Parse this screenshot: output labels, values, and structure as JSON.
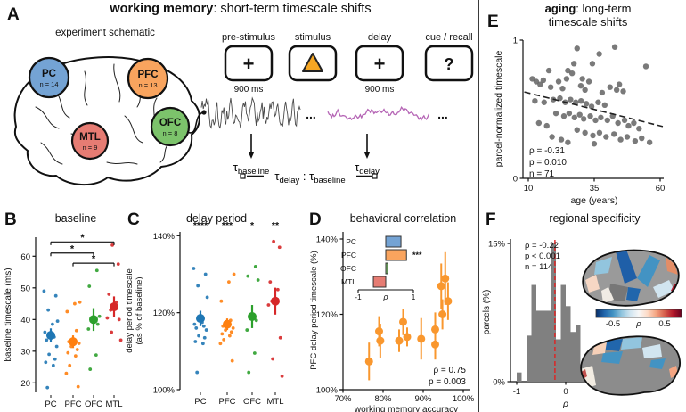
{
  "colors": {
    "pc": "#1f77b4",
    "pfc": "#ff7f0e",
    "ofc": "#2ca02c",
    "mtl": "#d62728",
    "pc_light": "#74a3d4",
    "pfc_light": "#f9a45e",
    "ofc_light": "#7cc36b",
    "mtl_light": "#e67c73",
    "gray_trace": "#4a4a4a",
    "purple_trace": "#b565b5",
    "stim_triangle": "#f5a623",
    "hist_bar": "#808080",
    "mean_line_red": "#e02020",
    "scatter_gray": "#636363",
    "d_point_orange": "#f9972e"
  },
  "panelA": {
    "label": "A",
    "title": {
      "bold": "working memory",
      "rest": ": short-term timescale shifts"
    },
    "schematic_caption": "experiment schematic",
    "regions": [
      {
        "name": "PC",
        "n_label": "n = 14",
        "color_key": "pc_light"
      },
      {
        "name": "PFC",
        "n_label": "n = 13",
        "color_key": "pfc_light"
      },
      {
        "name": "MTL",
        "n_label": "n = 9",
        "color_key": "mtl_light"
      },
      {
        "name": "OFC",
        "n_label": "n = 8",
        "color_key": "ofc_light"
      }
    ],
    "screens": [
      {
        "label": "pre-stimulus",
        "symbol": "+",
        "duration": "900 ms"
      },
      {
        "label": "stimulus",
        "symbol": "triangle",
        "duration": null
      },
      {
        "label": "delay",
        "symbol": "+",
        "duration": "900 ms"
      },
      {
        "label": "cue / recall",
        "symbol": "?",
        "duration": null
      }
    ],
    "ellipsis": "...",
    "tau_baseline": {
      "tau": "τ",
      "sub": "baseline"
    },
    "tau_delay": {
      "tau": "τ",
      "sub": "delay"
    },
    "ratio": {
      "tau1": "τ",
      "sub1": "delay",
      "sep": " : ",
      "tau2": "τ",
      "sub2": "baseline"
    }
  },
  "chart_data": [
    {
      "id": "B",
      "type": "scatter",
      "panel_label": "B",
      "title": "baseline",
      "ylabel": "baseline timescale (ms)",
      "ylim": [
        17,
        66
      ],
      "yticks": [
        20,
        30,
        40,
        50,
        60
      ],
      "categories": [
        "PC",
        "PFC",
        "OFC",
        "MTL"
      ],
      "series": [
        {
          "name": "PC",
          "color": "#1f77b4",
          "mean": 35.0,
          "err": 2.2,
          "points": [
            49,
            47.5,
            43,
            39.5,
            38.5,
            36,
            34.5,
            33.5,
            31.5,
            29,
            27.5,
            26.5,
            25.5,
            18.5
          ]
        },
        {
          "name": "PFC",
          "color": "#ff7f0e",
          "mean": 33.0,
          "err": 2.0,
          "points": [
            45.5,
            45,
            42.5,
            36.5,
            33,
            32.5,
            31.5,
            30.5,
            29.5,
            28.5,
            25.5,
            23,
            18.8
          ]
        },
        {
          "name": "OFC",
          "color": "#2ca02c",
          "mean": 40.0,
          "err": 3.6,
          "points": [
            55.5,
            50.5,
            41,
            40.5,
            38.5,
            37,
            28.8,
            24.3
          ]
        },
        {
          "name": "MTL",
          "color": "#d62728",
          "mean": 44.0,
          "err": 3.3,
          "points": [
            63.5,
            57.5,
            48,
            45.5,
            43,
            40.5,
            40,
            36,
            33.5
          ]
        }
      ],
      "sig_brackets": [
        {
          "from": "PC",
          "to": "MTL",
          "label": "*",
          "y": 64.5
        },
        {
          "from": "PC",
          "to": "OFC",
          "label": "*",
          "y": 61.0
        },
        {
          "from": "PFC",
          "to": "MTL",
          "label": "*",
          "y": 57.8
        }
      ]
    },
    {
      "id": "C",
      "type": "scatter",
      "panel_label": "C",
      "title": "delay period",
      "ylabel_lines": [
        "delay period timescale",
        "(as % of baseline)"
      ],
      "ylim": [
        100,
        141
      ],
      "yticks": [
        100,
        120,
        140
      ],
      "ytick_suffix": "%",
      "categories": [
        "PC",
        "PFC",
        "OFC",
        "MTL"
      ],
      "sig_labels": [
        "****",
        "***",
        "*",
        "**"
      ],
      "series": [
        {
          "name": "PC",
          "color": "#1f77b4",
          "mean": 118.5,
          "err": 2.0,
          "points": [
            131.5,
            130,
            127,
            124,
            117.5,
            117,
            116.5,
            116,
            115.5,
            114,
            113.5,
            112.5,
            112,
            104.5
          ]
        },
        {
          "name": "PFC",
          "color": "#ff7f0e",
          "mean": 117.0,
          "err": 1.5,
          "points": [
            130,
            128,
            123,
            118,
            116.5,
            116,
            115.5,
            115,
            114.5,
            114,
            113,
            112,
            107.5
          ]
        },
        {
          "name": "OFC",
          "color": "#2ca02c",
          "mean": 119.0,
          "err": 3.0,
          "points": [
            132,
            129.5,
            128.5,
            119,
            118,
            115.5,
            109.5,
            104.5
          ]
        },
        {
          "name": "MTL",
          "color": "#d62728",
          "mean": 123.0,
          "err": 3.5,
          "points": [
            138.5,
            137,
            128,
            126,
            123,
            122,
            113.5,
            108,
            103.5
          ]
        }
      ]
    },
    {
      "id": "D",
      "type": "scatter-error",
      "panel_label": "D",
      "title": "behavioral correlation",
      "xlabel": "working memory accuracy",
      "ylabel": "PFC delay period timescale (%)",
      "xlim": [
        68,
        101
      ],
      "ylim": [
        99,
        141
      ],
      "xticks": [
        70,
        80,
        90,
        100
      ],
      "yticks": [
        100,
        120,
        140
      ],
      "tick_suffix": "%",
      "points": [
        {
          "x": 76.5,
          "y": 107.5,
          "err": 5.0
        },
        {
          "x": 79.0,
          "y": 115.5,
          "err": 4.0
        },
        {
          "x": 79.3,
          "y": 113.0,
          "err": 4.5
        },
        {
          "x": 84.0,
          "y": 113.0,
          "err": 3.0
        },
        {
          "x": 85.0,
          "y": 118.0,
          "err": 3.5
        },
        {
          "x": 86.0,
          "y": 114.0,
          "err": 2.5
        },
        {
          "x": 89.5,
          "y": 113.5,
          "err": 5.5
        },
        {
          "x": 93.0,
          "y": 116.0,
          "err": 4.5
        },
        {
          "x": 93.0,
          "y": 112.0,
          "err": 4.0
        },
        {
          "x": 94.5,
          "y": 127.5,
          "err": 6.0
        },
        {
          "x": 94.8,
          "y": 120.0,
          "err": 4.0
        },
        {
          "x": 95.5,
          "y": 129.5,
          "err": 7.0
        },
        {
          "x": 96.2,
          "y": 123.5,
          "err": 5.0
        }
      ],
      "stats": [
        "ρ = 0.75",
        "p = 0.003"
      ],
      "inset": {
        "type": "bar-horizontal",
        "xlabel": "ρ",
        "xlim": [
          -1,
          1
        ],
        "xticks": [
          -1,
          1
        ],
        "categories": [
          "PC",
          "PFC",
          "OFC",
          "MTL"
        ],
        "values": [
          0.55,
          0.75,
          0.07,
          -0.45
        ],
        "colors": [
          "#74a3d4",
          "#f9a45e",
          "#7cc36b",
          "#e67c73"
        ],
        "sig": {
          "category": "PFC",
          "label": "***"
        }
      }
    },
    {
      "id": "E",
      "type": "scatter",
      "panel_label": "E",
      "title": {
        "bold": "aging",
        "rest": ": long-term",
        "line2": "timescale shifts"
      },
      "xlabel": "age (years)",
      "ylabel": "parcel-normalized timescale",
      "xlim": [
        8,
        62
      ],
      "ylim": [
        0,
        1
      ],
      "xticks": [
        10,
        35,
        60
      ],
      "yticks": [
        0,
        1
      ],
      "trend": {
        "x1": 8.5,
        "y1": 0.625,
        "x2": 61,
        "y2": 0.375,
        "style": "dashed"
      },
      "stats": [
        "ρ = -0.31",
        "p = 0.010",
        "n = 71"
      ],
      "points": [
        [
          28.5,
          0.94
        ],
        [
          42.8,
          0.95
        ],
        [
          36.9,
          0.9
        ],
        [
          27.3,
          0.83
        ],
        [
          54.6,
          0.81
        ],
        [
          17.8,
          0.78
        ],
        [
          34.3,
          0.83
        ],
        [
          25,
          0.78
        ],
        [
          26.6,
          0.76
        ],
        [
          11.5,
          0.72
        ],
        [
          15.7,
          0.71
        ],
        [
          21.5,
          0.7
        ],
        [
          29.9,
          0.67
        ],
        [
          44.5,
          0.68
        ],
        [
          13,
          0.7
        ],
        [
          14.5,
          0.68
        ],
        [
          18.5,
          0.66
        ],
        [
          23,
          0.65
        ],
        [
          30.5,
          0.72
        ],
        [
          33,
          0.7
        ],
        [
          24.5,
          0.72
        ],
        [
          31.5,
          0.64
        ],
        [
          38,
          0.62
        ],
        [
          41,
          0.66
        ],
        [
          43.5,
          0.64
        ],
        [
          46,
          0.63
        ],
        [
          12.5,
          0.56
        ],
        [
          16,
          0.55
        ],
        [
          19.5,
          0.57
        ],
        [
          22,
          0.58
        ],
        [
          24,
          0.55
        ],
        [
          26,
          0.57
        ],
        [
          28,
          0.55
        ],
        [
          30,
          0.56
        ],
        [
          32,
          0.54
        ],
        [
          34,
          0.52
        ],
        [
          36.5,
          0.55
        ],
        [
          39,
          0.53
        ],
        [
          20.5,
          0.47
        ],
        [
          23.5,
          0.45
        ],
        [
          25.5,
          0.47
        ],
        [
          27.5,
          0.44
        ],
        [
          29.5,
          0.46
        ],
        [
          31,
          0.43
        ],
        [
          33.5,
          0.45
        ],
        [
          35.5,
          0.42
        ],
        [
          37.5,
          0.44
        ],
        [
          40,
          0.42
        ],
        [
          42,
          0.45
        ],
        [
          44,
          0.4
        ],
        [
          46.5,
          0.42
        ],
        [
          48,
          0.38
        ],
        [
          50,
          0.4
        ],
        [
          52,
          0.36
        ],
        [
          14,
          0.4
        ],
        [
          17,
          0.38
        ],
        [
          28.5,
          0.35
        ],
        [
          31.5,
          0.33
        ],
        [
          34.5,
          0.31
        ],
        [
          37,
          0.33
        ],
        [
          39.5,
          0.3
        ],
        [
          42.5,
          0.32
        ],
        [
          45,
          0.28
        ],
        [
          47.5,
          0.3
        ],
        [
          50.5,
          0.27
        ],
        [
          53,
          0.29
        ],
        [
          56,
          0.26
        ],
        [
          19,
          0.3
        ],
        [
          22.5,
          0.28
        ],
        [
          25,
          0.26
        ],
        [
          35,
          0.25
        ]
      ]
    },
    {
      "id": "F",
      "type": "histogram",
      "panel_label": "F",
      "title": "regional specificity",
      "xlabel": "ρ",
      "ylabel": "parcels (%)",
      "xlim": [
        -1.1,
        1.1
      ],
      "ylim": [
        0,
        15.5
      ],
      "xticks": [
        -1,
        0,
        1
      ],
      "yticks": [
        0,
        15
      ],
      "ytick_suffix": "%",
      "bin_width": 0.1,
      "bins": [
        {
          "center": -0.95,
          "value": 1.0
        },
        {
          "center": -0.75,
          "value": 5.0
        },
        {
          "center": -0.65,
          "value": 10.5
        },
        {
          "center": -0.55,
          "value": 7.7
        },
        {
          "center": -0.45,
          "value": 7.7
        },
        {
          "center": -0.35,
          "value": 7.7
        },
        {
          "center": -0.25,
          "value": 15.0
        },
        {
          "center": -0.15,
          "value": 4.6
        },
        {
          "center": -0.05,
          "value": 10.5
        },
        {
          "center": 0.05,
          "value": 8.2
        },
        {
          "center": 0.15,
          "value": 5.4
        },
        {
          "center": 0.25,
          "value": 6.1
        },
        {
          "center": 0.35,
          "value": 1.5
        },
        {
          "center": 0.45,
          "value": 1.5
        },
        {
          "center": 0.55,
          "value": 1.0
        }
      ],
      "mean_line": {
        "x": -0.22,
        "style": "dashed"
      },
      "stats": [
        "ρ̄ = -0.22",
        "p < 0.001",
        "n = 114"
      ],
      "colorbar": {
        "min_label": "-0.5",
        "mid_label": "ρ",
        "max_label": "0.5",
        "colors": [
          "#08306b",
          "#2166ac",
          "#4393c3",
          "#92c5de",
          "#d1e5f0",
          "#f7f7f7",
          "#fddbc7",
          "#f4a582",
          "#d6604d",
          "#b2182b",
          "#67001f"
        ]
      }
    }
  ]
}
